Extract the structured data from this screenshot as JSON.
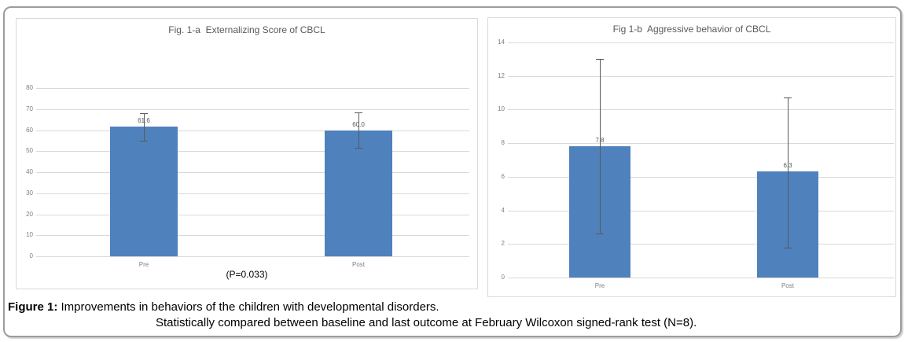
{
  "figure": {
    "caption_bold": "Figure 1:",
    "caption_rest": " Improvements in behaviors of the children with developmental disorders.",
    "caption_line2": "Statistically compared between baseline and last outcome at February Wilcoxon signed-rank test (N=8)."
  },
  "colors": {
    "bar": "#4f81bd",
    "grid": "#d9d9d9",
    "error_bar": "#595959",
    "axis_text": "#7f7f7f",
    "title_text": "#595959"
  },
  "chart_data": [
    {
      "type": "bar",
      "title": "Fig. 1-a  Externalizing Score of CBCL",
      "categories": [
        "Pre",
        "Post"
      ],
      "values": [
        61.6,
        60.0
      ],
      "value_labels": [
        "61.6",
        "60.0"
      ],
      "error_low": [
        55.0,
        51.7
      ],
      "error_high": [
        68.0,
        68.4
      ],
      "ylim": [
        0,
        80
      ],
      "yticks": [
        0,
        10,
        20,
        30,
        40,
        50,
        60,
        70,
        80
      ],
      "grid": true,
      "legend": "none",
      "annotation": "(P=0.033)"
    },
    {
      "type": "bar",
      "title": "Fig 1-b  Aggressive behavior of CBCL",
      "categories": [
        "Pre",
        "Post"
      ],
      "values": [
        7.8,
        6.3
      ],
      "value_labels": [
        "7.8",
        "6.3"
      ],
      "error_low": [
        2.6,
        1.8
      ],
      "error_high": [
        13.0,
        10.7
      ],
      "ylim": [
        0,
        14
      ],
      "yticks": [
        0,
        2,
        4,
        6,
        8,
        10,
        12,
        14
      ],
      "grid": true,
      "legend": "none",
      "annotation": ""
    }
  ]
}
